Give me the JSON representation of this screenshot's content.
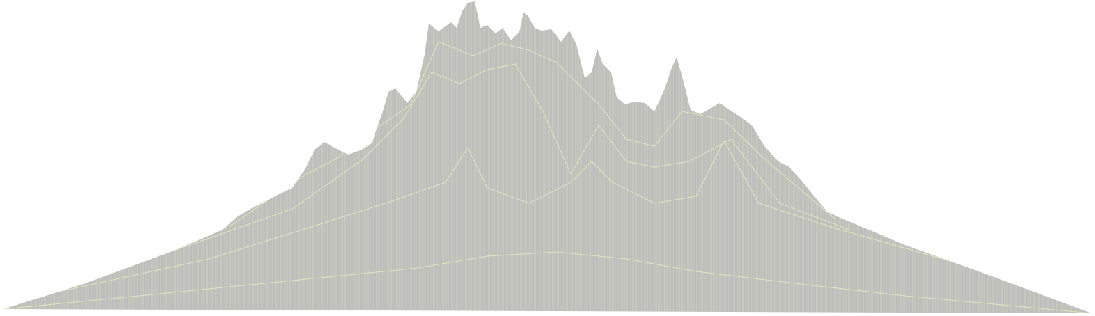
{
  "scene": {
    "subject": "3d-wireframe-terrain-ridgeline",
    "fill_color": "#bdbdbd",
    "line_color": "#dfe8bf",
    "edge_color": "#b3b3b3",
    "background": "#ffffff"
  }
}
